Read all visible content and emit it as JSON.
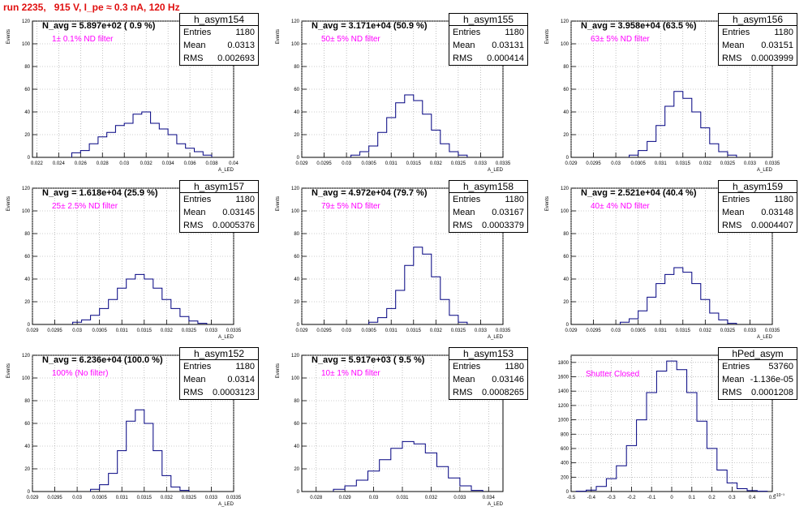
{
  "page_title": "run 2235,   915 V, I_pe ≈ 0.3 nA, 120 Hz",
  "panels": [
    {
      "name": "h_asym154",
      "navg": "N_avg = 5.897e+02 ( 0.9 %)",
      "filter": "1± 0.1% ND filter",
      "entries": "1180",
      "mean": "0.0313",
      "rms": "0.002693"
    },
    {
      "name": "h_asym155",
      "navg": "N_avg = 3.171e+04 (50.9 %)",
      "filter": "50± 5% ND filter",
      "entries": "1180",
      "mean": "0.03131",
      "rms": "0.000414"
    },
    {
      "name": "h_asym156",
      "navg": "N_avg = 3.958e+04 (63.5 %)",
      "filter": "63± 5% ND filter",
      "entries": "1180",
      "mean": "0.03151",
      "rms": "0.0003999"
    },
    {
      "name": "h_asym157",
      "navg": "N_avg = 1.618e+04 (25.9 %)",
      "filter": "25± 2.5% ND filter",
      "entries": "1180",
      "mean": "0.03145",
      "rms": "0.0005376"
    },
    {
      "name": "h_asym158",
      "navg": "N_avg = 4.972e+04 (79.7 %)",
      "filter": "79± 5% ND filter",
      "entries": "1180",
      "mean": "0.03167",
      "rms": "0.0003379"
    },
    {
      "name": "h_asym159",
      "navg": "N_avg = 2.521e+04 (40.4 %)",
      "filter": "40± 4% ND filter",
      "entries": "1180",
      "mean": "0.03148",
      "rms": "0.0004407"
    },
    {
      "name": "h_asym152",
      "navg": "N_avg = 6.236e+04 (100.0 %)",
      "filter": "100% (No filter)",
      "entries": "1180",
      "mean": "0.0314",
      "rms": "0.0003123"
    },
    {
      "name": "h_asym153",
      "navg": "N_avg = 5.917e+03 ( 9.5 %)",
      "filter": "10± 1% ND filter",
      "entries": "1180",
      "mean": "0.03146",
      "rms": "0.0008265"
    },
    {
      "name": "hPed_asym",
      "navg": "",
      "filter": "Shutter Closed",
      "entries": "53760",
      "mean": "-1.136e-05",
      "rms": "0.0001208"
    }
  ],
  "stat_labels": {
    "entries": "Entries",
    "mean": "Mean",
    "rms": "RMS"
  },
  "chart_data": [
    {
      "type": "histogram",
      "name": "h_asym154",
      "ylabel": "Events",
      "xlabel": "A_LED",
      "ylim": [
        0,
        120
      ],
      "xlim": [
        0.0216,
        0.04
      ],
      "xticks": [
        "0.022",
        "0.024",
        "0.026",
        "0.028",
        "0.03",
        "0.032",
        "0.034",
        "0.036",
        "0.038",
        "0.04"
      ],
      "yticks": [
        "0",
        "20",
        "40",
        "60",
        "80",
        "100",
        "120"
      ],
      "bin_centers": [
        0.0256,
        0.0264,
        0.0272,
        0.028,
        0.0288,
        0.0296,
        0.0304,
        0.0312,
        0.032,
        0.0328,
        0.0336,
        0.0344,
        0.0352,
        0.036,
        0.0368,
        0.0376
      ],
      "counts": [
        4,
        6,
        12,
        18,
        22,
        28,
        30,
        38,
        40,
        30,
        25,
        20,
        12,
        8,
        5,
        2
      ]
    },
    {
      "type": "histogram",
      "name": "h_asym155",
      "ylabel": "Events",
      "xlabel": "A_LED",
      "ylim": [
        0,
        120
      ],
      "xlim": [
        0.029,
        0.0335
      ],
      "xticks": [
        "0.029",
        "0.0295",
        "0.03",
        "0.0305",
        "0.031",
        "0.0315",
        "0.032",
        "0.0325",
        "0.033",
        "0.0335"
      ],
      "yticks": [
        "0",
        "20",
        "40",
        "60",
        "80",
        "100",
        "120"
      ],
      "bin_centers": [
        0.0302,
        0.0304,
        0.0306,
        0.0308,
        0.031,
        0.0312,
        0.0314,
        0.0316,
        0.0318,
        0.032,
        0.0322,
        0.0324,
        0.0326
      ],
      "counts": [
        2,
        5,
        10,
        22,
        35,
        48,
        55,
        50,
        38,
        24,
        12,
        5,
        2
      ]
    },
    {
      "type": "histogram",
      "name": "h_asym156",
      "ylabel": "Events",
      "xlabel": "A_LED",
      "ylim": [
        0,
        120
      ],
      "xlim": [
        0.029,
        0.0335
      ],
      "xticks": [
        "0.029",
        "0.0295",
        "0.03",
        "0.0305",
        "0.031",
        "0.0315",
        "0.032",
        "0.0325",
        "0.033",
        "0.0335"
      ],
      "yticks": [
        "0",
        "20",
        "40",
        "60",
        "80",
        "100",
        "120"
      ],
      "bin_centers": [
        0.0304,
        0.0306,
        0.0308,
        0.031,
        0.0312,
        0.0314,
        0.0316,
        0.0318,
        0.032,
        0.0322,
        0.0324,
        0.0326
      ],
      "counts": [
        2,
        6,
        14,
        28,
        45,
        58,
        52,
        40,
        26,
        12,
        5,
        2
      ]
    },
    {
      "type": "histogram",
      "name": "h_asym157",
      "ylabel": "Events",
      "xlabel": "A_LED",
      "ylim": [
        0,
        120
      ],
      "xlim": [
        0.029,
        0.0335
      ],
      "xticks": [
        "0.029",
        "0.0295",
        "0.03",
        "0.0305",
        "0.031",
        "0.0315",
        "0.032",
        "0.0325",
        "0.033",
        "0.0335"
      ],
      "yticks": [
        "0",
        "20",
        "40",
        "60",
        "80",
        "100",
        "120"
      ],
      "bin_centers": [
        0.03,
        0.0302,
        0.0304,
        0.0306,
        0.0308,
        0.031,
        0.0312,
        0.0314,
        0.0316,
        0.0318,
        0.032,
        0.0322,
        0.0324,
        0.0326,
        0.0328
      ],
      "counts": [
        2,
        4,
        8,
        14,
        22,
        32,
        40,
        44,
        40,
        32,
        22,
        14,
        7,
        3,
        1
      ]
    },
    {
      "type": "histogram",
      "name": "h_asym158",
      "ylabel": "Events",
      "xlabel": "A_LED",
      "ylim": [
        0,
        120
      ],
      "xlim": [
        0.029,
        0.0335
      ],
      "xticks": [
        "0.029",
        "0.0295",
        "0.03",
        "0.0305",
        "0.031",
        "0.0315",
        "0.032",
        "0.0325",
        "0.033",
        "0.0335"
      ],
      "yticks": [
        "0",
        "20",
        "40",
        "60",
        "80",
        "100",
        "120"
      ],
      "bin_centers": [
        0.0306,
        0.0308,
        0.031,
        0.0312,
        0.0314,
        0.0316,
        0.0318,
        0.032,
        0.0322,
        0.0324,
        0.0326
      ],
      "counts": [
        2,
        6,
        14,
        30,
        52,
        68,
        62,
        42,
        22,
        8,
        2
      ]
    },
    {
      "type": "histogram",
      "name": "h_asym159",
      "ylabel": "Events",
      "xlabel": "A_LED",
      "ylim": [
        0,
        120
      ],
      "xlim": [
        0.029,
        0.0335
      ],
      "xticks": [
        "0.029",
        "0.0295",
        "0.03",
        "0.0305",
        "0.031",
        "0.0315",
        "0.032",
        "0.0325",
        "0.033",
        "0.0335"
      ],
      "yticks": [
        "0",
        "20",
        "40",
        "60",
        "80",
        "100",
        "120"
      ],
      "bin_centers": [
        0.0302,
        0.0304,
        0.0306,
        0.0308,
        0.031,
        0.0312,
        0.0314,
        0.0316,
        0.0318,
        0.032,
        0.0322,
        0.0324,
        0.0326
      ],
      "counts": [
        2,
        5,
        12,
        24,
        36,
        44,
        50,
        46,
        36,
        22,
        10,
        4,
        1
      ]
    },
    {
      "type": "histogram",
      "name": "h_asym152",
      "ylabel": "Events",
      "xlabel": "A_LED",
      "ylim": [
        0,
        120
      ],
      "xlim": [
        0.029,
        0.0335
      ],
      "xticks": [
        "0.029",
        "0.0295",
        "0.03",
        "0.0305",
        "0.031",
        "0.0315",
        "0.032",
        "0.0325",
        "0.033",
        "0.0335"
      ],
      "yticks": [
        "0",
        "20",
        "40",
        "60",
        "80",
        "100",
        "120"
      ],
      "bin_centers": [
        0.0304,
        0.0306,
        0.0308,
        0.031,
        0.0312,
        0.0314,
        0.0316,
        0.0318,
        0.032,
        0.0322,
        0.0324
      ],
      "counts": [
        2,
        6,
        16,
        36,
        62,
        72,
        60,
        36,
        14,
        4,
        1
      ]
    },
    {
      "type": "histogram",
      "name": "h_asym153",
      "ylabel": "Events",
      "xlabel": "A_LED",
      "ylim": [
        0,
        120
      ],
      "xlim": [
        0.0275,
        0.0345
      ],
      "xticks": [
        "0.028",
        "0.029",
        "0.03",
        "0.031",
        "0.032",
        "0.033",
        "0.034"
      ],
      "yticks": [
        "0",
        "20",
        "40",
        "60",
        "80",
        "100",
        "120"
      ],
      "bin_centers": [
        0.0288,
        0.0292,
        0.0296,
        0.03,
        0.0304,
        0.0308,
        0.0312,
        0.0316,
        0.032,
        0.0324,
        0.0328,
        0.0332,
        0.0336
      ],
      "counts": [
        2,
        5,
        10,
        18,
        28,
        38,
        44,
        42,
        34,
        22,
        12,
        5,
        1
      ]
    },
    {
      "type": "histogram",
      "name": "hPed_asym",
      "ylabel": "",
      "xlabel": "",
      "ylim": [
        0,
        1900
      ],
      "xlim": [
        -0.0005,
        0.0005
      ],
      "xticks": [
        "-0.5",
        "-0.4",
        "-0.3",
        "-0.2",
        "-0.1",
        "0",
        "0.1",
        "0.2",
        "0.3",
        "0.4",
        "0.5"
      ],
      "yticks": [
        "0",
        "200",
        "400",
        "600",
        "800",
        "1000",
        "1200",
        "1400",
        "1600",
        "1800"
      ],
      "exponent_label": "×10⁻³",
      "bin_centers": [
        -0.00045,
        -0.0004,
        -0.00035,
        -0.0003,
        -0.00025,
        -0.0002,
        -0.00015,
        -0.0001,
        -5e-05,
        0.0,
        5e-05,
        0.0001,
        0.00015,
        0.0002,
        0.00025,
        0.0003,
        0.00035,
        0.0004,
        0.00045
      ],
      "counts": [
        5,
        20,
        70,
        180,
        360,
        640,
        1000,
        1380,
        1680,
        1820,
        1700,
        1380,
        980,
        600,
        300,
        120,
        40,
        12,
        4
      ]
    }
  ]
}
